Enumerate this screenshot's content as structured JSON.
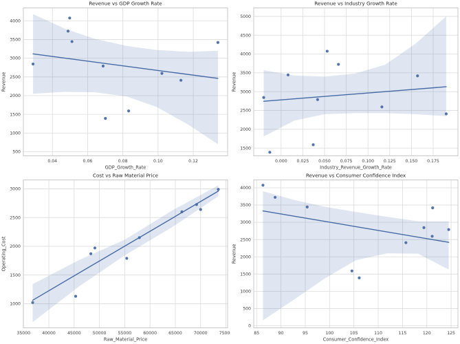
{
  "figure": {
    "rows": 2,
    "cols": 2,
    "background": "#ffffff"
  },
  "style": {
    "point_color": "#4a6ba4",
    "line_color": "#4569a5",
    "band_color": "#4c72b0",
    "band_opacity": 0.18,
    "grid_color": "#dcdcdc",
    "spine_color": "#c8c8c8",
    "tick_label_color": "#3d3d3d",
    "title_color": "#262626",
    "axis_label_color": "#3d3d3d",
    "plot_background": "#ffffff"
  },
  "chart_data": [
    {
      "type": "scatter",
      "title": "Revenue vs GDP Growth Rate",
      "xlabel": "GDP_Growth_Rate",
      "ylabel": "Revenue",
      "xlim": [
        0.0235,
        0.1395
      ],
      "ylim": [
        390,
        4345
      ],
      "grid": true,
      "legend": null,
      "xticks": {
        "values": [
          0.04,
          0.06,
          0.08,
          0.1,
          0.12
        ],
        "labels": [
          "0.04",
          "0.06",
          "0.08",
          "0.10",
          "0.12"
        ]
      },
      "yticks": {
        "values": [
          500,
          1000,
          1500,
          2000,
          2500,
          3000,
          3500,
          4000
        ],
        "labels": [
          "500",
          "1000",
          "1500",
          "2000",
          "2500",
          "3000",
          "3500",
          "4000"
        ]
      },
      "points": [
        [
          0.0498,
          4075
        ],
        [
          0.0489,
          3725
        ],
        [
          0.0511,
          3445
        ],
        [
          0.134,
          3420
        ],
        [
          0.029,
          2845
        ],
        [
          0.0688,
          2790
        ],
        [
          0.1022,
          2595
        ],
        [
          0.113,
          2410
        ],
        [
          0.0833,
          1590
        ],
        [
          0.0701,
          1390
        ]
      ],
      "regression_line": {
        "x": [
          0.029,
          0.134
        ],
        "y": [
          3115,
          2460
        ]
      },
      "confidence_band": {
        "x": [
          0.029,
          0.047,
          0.064,
          0.082,
          0.099,
          0.117,
          0.134
        ],
        "upper": [
          4180,
          3790,
          3520,
          3330,
          3220,
          3170,
          3200
        ],
        "lower": [
          2050,
          2100,
          2090,
          1980,
          1700,
          1230,
          700
        ]
      }
    },
    {
      "type": "scatter",
      "title": "Revenue vs Industry Growth Rate",
      "xlabel": "Industry_Revenue_Growth_Rate",
      "ylabel": "Revenue",
      "xlim": [
        -0.0315,
        0.2035
      ],
      "ylim": [
        1295,
        5225
      ],
      "grid": true,
      "legend": null,
      "xticks": {
        "values": [
          0.0,
          0.025,
          0.05,
          0.075,
          0.1,
          0.125,
          0.15,
          0.175
        ],
        "labels": [
          "0.000",
          "0.025",
          "0.050",
          "0.075",
          "0.100",
          "0.125",
          "0.150",
          "0.175"
        ]
      },
      "yticks": {
        "values": [
          1500,
          2000,
          2500,
          3000,
          3500,
          4000,
          4500,
          5000
        ],
        "labels": [
          "1500",
          "2000",
          "2500",
          "3000",
          "3500",
          "4000",
          "4500",
          "5000"
        ]
      },
      "points": [
        [
          0.053,
          4075
        ],
        [
          0.066,
          3725
        ],
        [
          0.008,
          3445
        ],
        [
          0.157,
          3420
        ],
        [
          -0.02,
          2845
        ],
        [
          0.042,
          2790
        ],
        [
          0.116,
          2595
        ],
        [
          0.19,
          2410
        ],
        [
          0.037,
          1590
        ],
        [
          -0.013,
          1390
        ]
      ],
      "regression_line": {
        "x": [
          -0.02,
          0.19
        ],
        "y": [
          2745,
          3130
        ]
      },
      "confidence_band": {
        "x": [
          -0.02,
          0.015,
          0.05,
          0.085,
          0.12,
          0.155,
          0.19
        ],
        "upper": [
          3570,
          3430,
          3400,
          3480,
          3720,
          4280,
          5000
        ],
        "lower": [
          1810,
          2230,
          2400,
          2430,
          2430,
          2400,
          2350
        ]
      }
    },
    {
      "type": "scatter",
      "title": "Cost vs Raw Material Price",
      "xlabel": "Raw_Material_Price",
      "ylabel": "Operating_Cost",
      "xlim": [
        34965,
        75335
      ],
      "ylim": [
        580,
        3155
      ],
      "grid": true,
      "legend": null,
      "xticks": {
        "values": [
          35000,
          40000,
          45000,
          50000,
          55000,
          60000,
          65000,
          70000,
          75000
        ],
        "labels": [
          "35000",
          "40000",
          "45000",
          "50000",
          "55000",
          "60000",
          "65000",
          "70000",
          "75000"
        ]
      },
      "yticks": {
        "values": [
          1000,
          1500,
          2000,
          2500,
          3000
        ],
        "labels": [
          "1000",
          "1500",
          "2000",
          "2500",
          "3000"
        ]
      },
      "points": [
        [
          36800,
          1020
        ],
        [
          45300,
          1130
        ],
        [
          48300,
          1870
        ],
        [
          49100,
          1970
        ],
        [
          55400,
          1790
        ],
        [
          57900,
          2150
        ],
        [
          66300,
          2600
        ],
        [
          69200,
          2725
        ],
        [
          70000,
          2640
        ],
        [
          73500,
          2990
        ]
      ],
      "regression_line": {
        "x": [
          36800,
          73500
        ],
        "y": [
          1060,
          2960
        ]
      },
      "confidence_band": {
        "x": [
          36800,
          45975,
          55150,
          64325,
          73500
        ],
        "upper": [
          1340,
          1760,
          2120,
          2620,
          3060
        ],
        "lower": [
          680,
          1300,
          1850,
          2330,
          2870
        ]
      }
    },
    {
      "type": "scatter",
      "title": "Revenue vs Consumer Confidence Index",
      "xlabel": "Consumer_Confidence_Index",
      "ylabel": "Revenue",
      "xlim": [
        84.4,
        126.4
      ],
      "ylim": [
        -60,
        4230
      ],
      "grid": true,
      "legend": null,
      "xticks": {
        "values": [
          85,
          90,
          95,
          100,
          105,
          110,
          115,
          120,
          125
        ],
        "labels": [
          "85",
          "90",
          "95",
          "100",
          "105",
          "110",
          "115",
          "120",
          "125"
        ]
      },
      "yticks": {
        "values": [
          0,
          500,
          1000,
          1500,
          2000,
          2500,
          3000,
          3500,
          4000
        ],
        "labels": [
          "0",
          "500",
          "1000",
          "1500",
          "2000",
          "2500",
          "3000",
          "3500",
          "4000"
        ]
      },
      "points": [
        [
          86.3,
          4075
        ],
        [
          88.8,
          3725
        ],
        [
          95.4,
          3445
        ],
        [
          121.2,
          3420
        ],
        [
          119.4,
          2845
        ],
        [
          124.5,
          2790
        ],
        [
          121.1,
          2595
        ],
        [
          115.7,
          2410
        ],
        [
          104.6,
          1590
        ],
        [
          106.1,
          1390
        ]
      ],
      "regression_line": {
        "x": [
          86.3,
          124.5
        ],
        "y": [
          3330,
          2420
        ]
      },
      "confidence_band": {
        "x": [
          86.3,
          92.7,
          99.1,
          105.4,
          111.8,
          118.2,
          124.5
        ],
        "upper": [
          3900,
          3650,
          3450,
          3300,
          3160,
          3030,
          3030
        ],
        "lower": [
          160,
          760,
          1380,
          1900,
          2100,
          2090,
          1630
        ]
      }
    }
  ]
}
